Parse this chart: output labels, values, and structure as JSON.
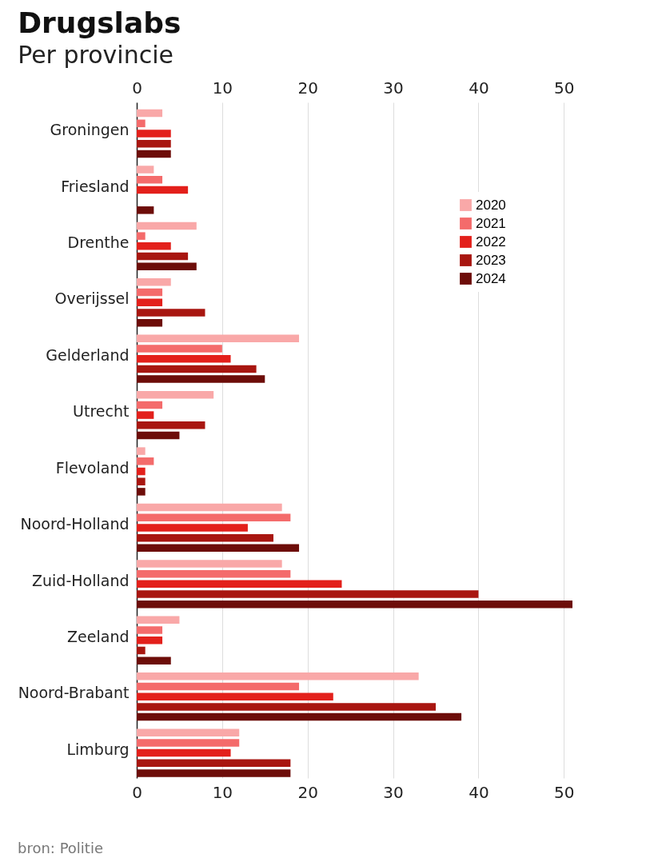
{
  "chart_data": {
    "type": "bar",
    "orientation": "horizontal",
    "title": "Drugslabs",
    "subtitle": "Per provincie",
    "categories": [
      "Groningen",
      "Friesland",
      "Drenthe",
      "Overijssel",
      "Gelderland",
      "Utrecht",
      "Flevoland",
      "Noord-Holland",
      "Zuid-Holland",
      "Zeeland",
      "Noord-Brabant",
      "Limburg"
    ],
    "series": [
      {
        "name": "2020",
        "color": "#f9a8a8",
        "values": [
          3,
          2,
          7,
          4,
          19,
          9,
          1,
          17,
          17,
          5,
          33,
          12
        ]
      },
      {
        "name": "2021",
        "color": "#f46b6b",
        "values": [
          1,
          3,
          1,
          3,
          10,
          3,
          2,
          18,
          18,
          3,
          19,
          12
        ]
      },
      {
        "name": "2022",
        "color": "#e3201b",
        "values": [
          4,
          6,
          4,
          3,
          11,
          2,
          1,
          13,
          24,
          3,
          23,
          11
        ]
      },
      {
        "name": "2023",
        "color": "#a81610",
        "values": [
          4,
          0,
          6,
          8,
          14,
          8,
          1,
          16,
          40,
          1,
          35,
          18
        ]
      },
      {
        "name": "2024",
        "color": "#6d0d09",
        "values": [
          4,
          2,
          7,
          3,
          15,
          5,
          1,
          19,
          51,
          4,
          38,
          18
        ]
      }
    ],
    "xlim": [
      0,
      51
    ],
    "xticks": [
      0,
      10,
      20,
      30,
      40,
      50
    ],
    "x2lim": [
      0,
      51
    ],
    "x2ticks": [
      0,
      10,
      20,
      30,
      40,
      50
    ],
    "grid": "x",
    "legend": "top right",
    "annotations": [
      "bron: Politie"
    ]
  }
}
